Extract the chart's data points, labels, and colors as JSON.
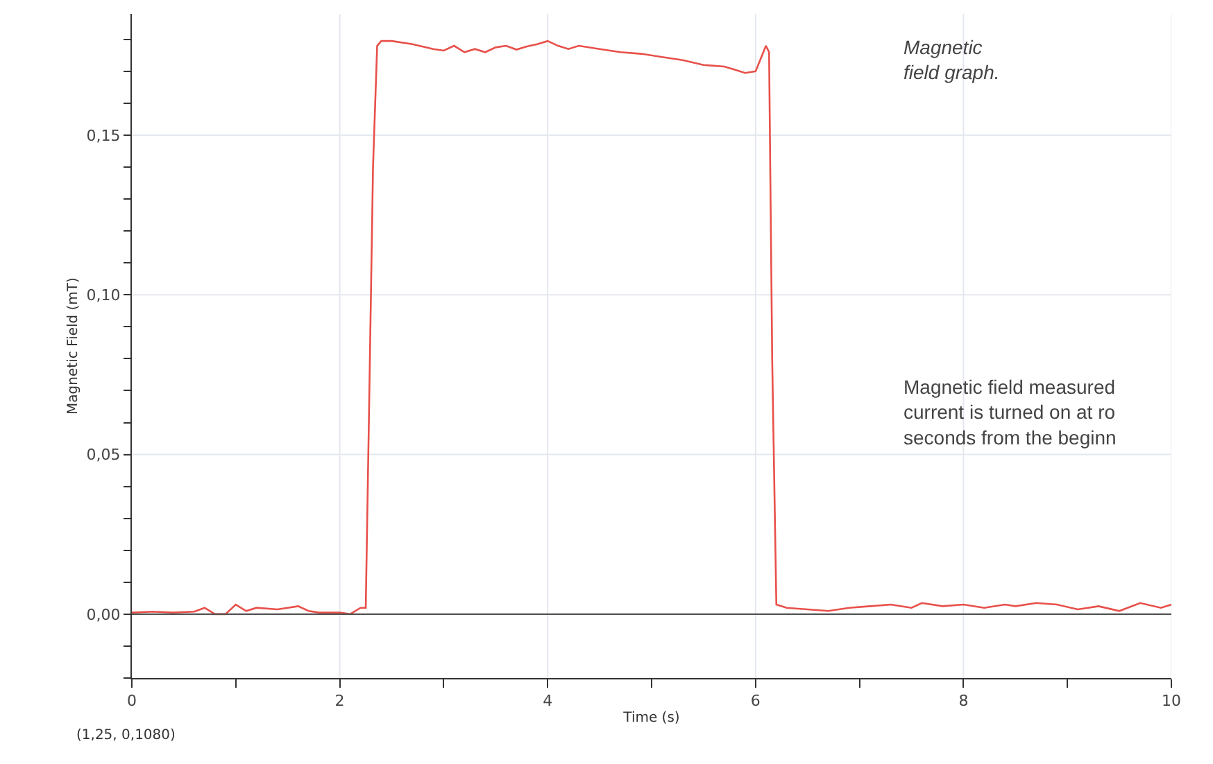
{
  "chart_data": {
    "type": "line",
    "xlabel": "Time (s)",
    "ylabel": "Magnetic Field (mT)",
    "x": [
      0,
      0.2,
      0.4,
      0.6,
      0.7,
      0.8,
      0.9,
      1.0,
      1.1,
      1.2,
      1.4,
      1.6,
      1.7,
      1.8,
      2.0,
      2.1,
      2.2,
      2.25,
      2.28,
      2.32,
      2.36,
      2.4,
      2.5,
      2.7,
      2.9,
      3.0,
      3.1,
      3.2,
      3.3,
      3.4,
      3.5,
      3.6,
      3.7,
      3.8,
      3.9,
      4.0,
      4.1,
      4.2,
      4.3,
      4.5,
      4.7,
      4.9,
      5.1,
      5.3,
      5.5,
      5.7,
      5.8,
      5.9,
      6.0,
      6.05,
      6.1,
      6.13,
      6.16,
      6.2,
      6.3,
      6.5,
      6.7,
      6.9,
      7.1,
      7.3,
      7.5,
      7.6,
      7.8,
      8.0,
      8.2,
      8.4,
      8.5,
      8.7,
      8.9,
      9.1,
      9.3,
      9.5,
      9.7,
      9.9,
      10.0
    ],
    "series": [
      {
        "color": "#e8504a",
        "values": [
          0.0005,
          0.0008,
          0.0005,
          0.0008,
          0.002,
          0.0,
          0.0,
          0.003,
          0.001,
          0.002,
          0.0015,
          0.0025,
          0.001,
          0.0005,
          0.0005,
          0.0,
          0.002,
          0.002,
          0.06,
          0.14,
          0.178,
          0.1795,
          0.1795,
          0.1785,
          0.177,
          0.1765,
          0.178,
          0.176,
          0.177,
          0.176,
          0.1775,
          0.178,
          0.1768,
          0.1778,
          0.1785,
          0.1795,
          0.178,
          0.177,
          0.178,
          0.177,
          0.176,
          0.1755,
          0.1745,
          0.1735,
          0.172,
          0.1715,
          0.1705,
          0.1695,
          0.17,
          0.174,
          0.178,
          0.176,
          0.08,
          0.003,
          0.002,
          0.0015,
          0.001,
          0.002,
          0.0025,
          0.003,
          0.002,
          0.0035,
          0.0025,
          0.003,
          0.002,
          0.003,
          0.0025,
          0.0035,
          0.003,
          0.0015,
          0.0025,
          0.001,
          0.0035,
          0.002,
          0.003
        ]
      }
    ],
    "xlim": [
      0,
      10
    ],
    "ylim": [
      -0.02,
      0.188
    ],
    "xticks": [
      0,
      {
        "value": 1,
        "label": null
      },
      2,
      {
        "value": 3,
        "label": null
      },
      4,
      {
        "value": 5,
        "label": null
      },
      6,
      {
        "value": 7,
        "label": null
      },
      8,
      {
        "value": 9,
        "label": null
      },
      10
    ],
    "yticks": [
      {
        "value": -0.02,
        "label": null
      },
      {
        "value": -0.01,
        "label": null
      },
      {
        "value": 0,
        "label": "0,00"
      },
      {
        "value": 0.01,
        "label": null
      },
      {
        "value": 0.02,
        "label": null
      },
      {
        "value": 0.03,
        "label": null
      },
      {
        "value": 0.04,
        "label": null
      },
      {
        "value": 0.05,
        "label": "0,05"
      },
      {
        "value": 0.06,
        "label": null
      },
      {
        "value": 0.07,
        "label": null
      },
      {
        "value": 0.08,
        "label": null
      },
      {
        "value": 0.09,
        "label": null
      },
      {
        "value": 0.1,
        "label": "0,10"
      },
      {
        "value": 0.11,
        "label": null
      },
      {
        "value": 0.12,
        "label": null
      },
      {
        "value": 0.13,
        "label": null
      },
      {
        "value": 0.14,
        "label": null
      },
      {
        "value": 0.15,
        "label": "0,15"
      },
      {
        "value": 0.16,
        "label": null
      },
      {
        "value": 0.17,
        "label": null
      },
      {
        "value": 0.18,
        "label": null
      }
    ],
    "ref_lines": [
      {
        "axis": "y",
        "value": 0,
        "color": "#555555"
      }
    ],
    "grid": true,
    "marker": "none",
    "line_style": "solid",
    "annotations": [
      "Magnetic\nfield graph.",
      "Magnetic field measured\ncurrent is turned on at ro\nseconds from the beginn",
      "(1,25, 0,1080)"
    ]
  }
}
